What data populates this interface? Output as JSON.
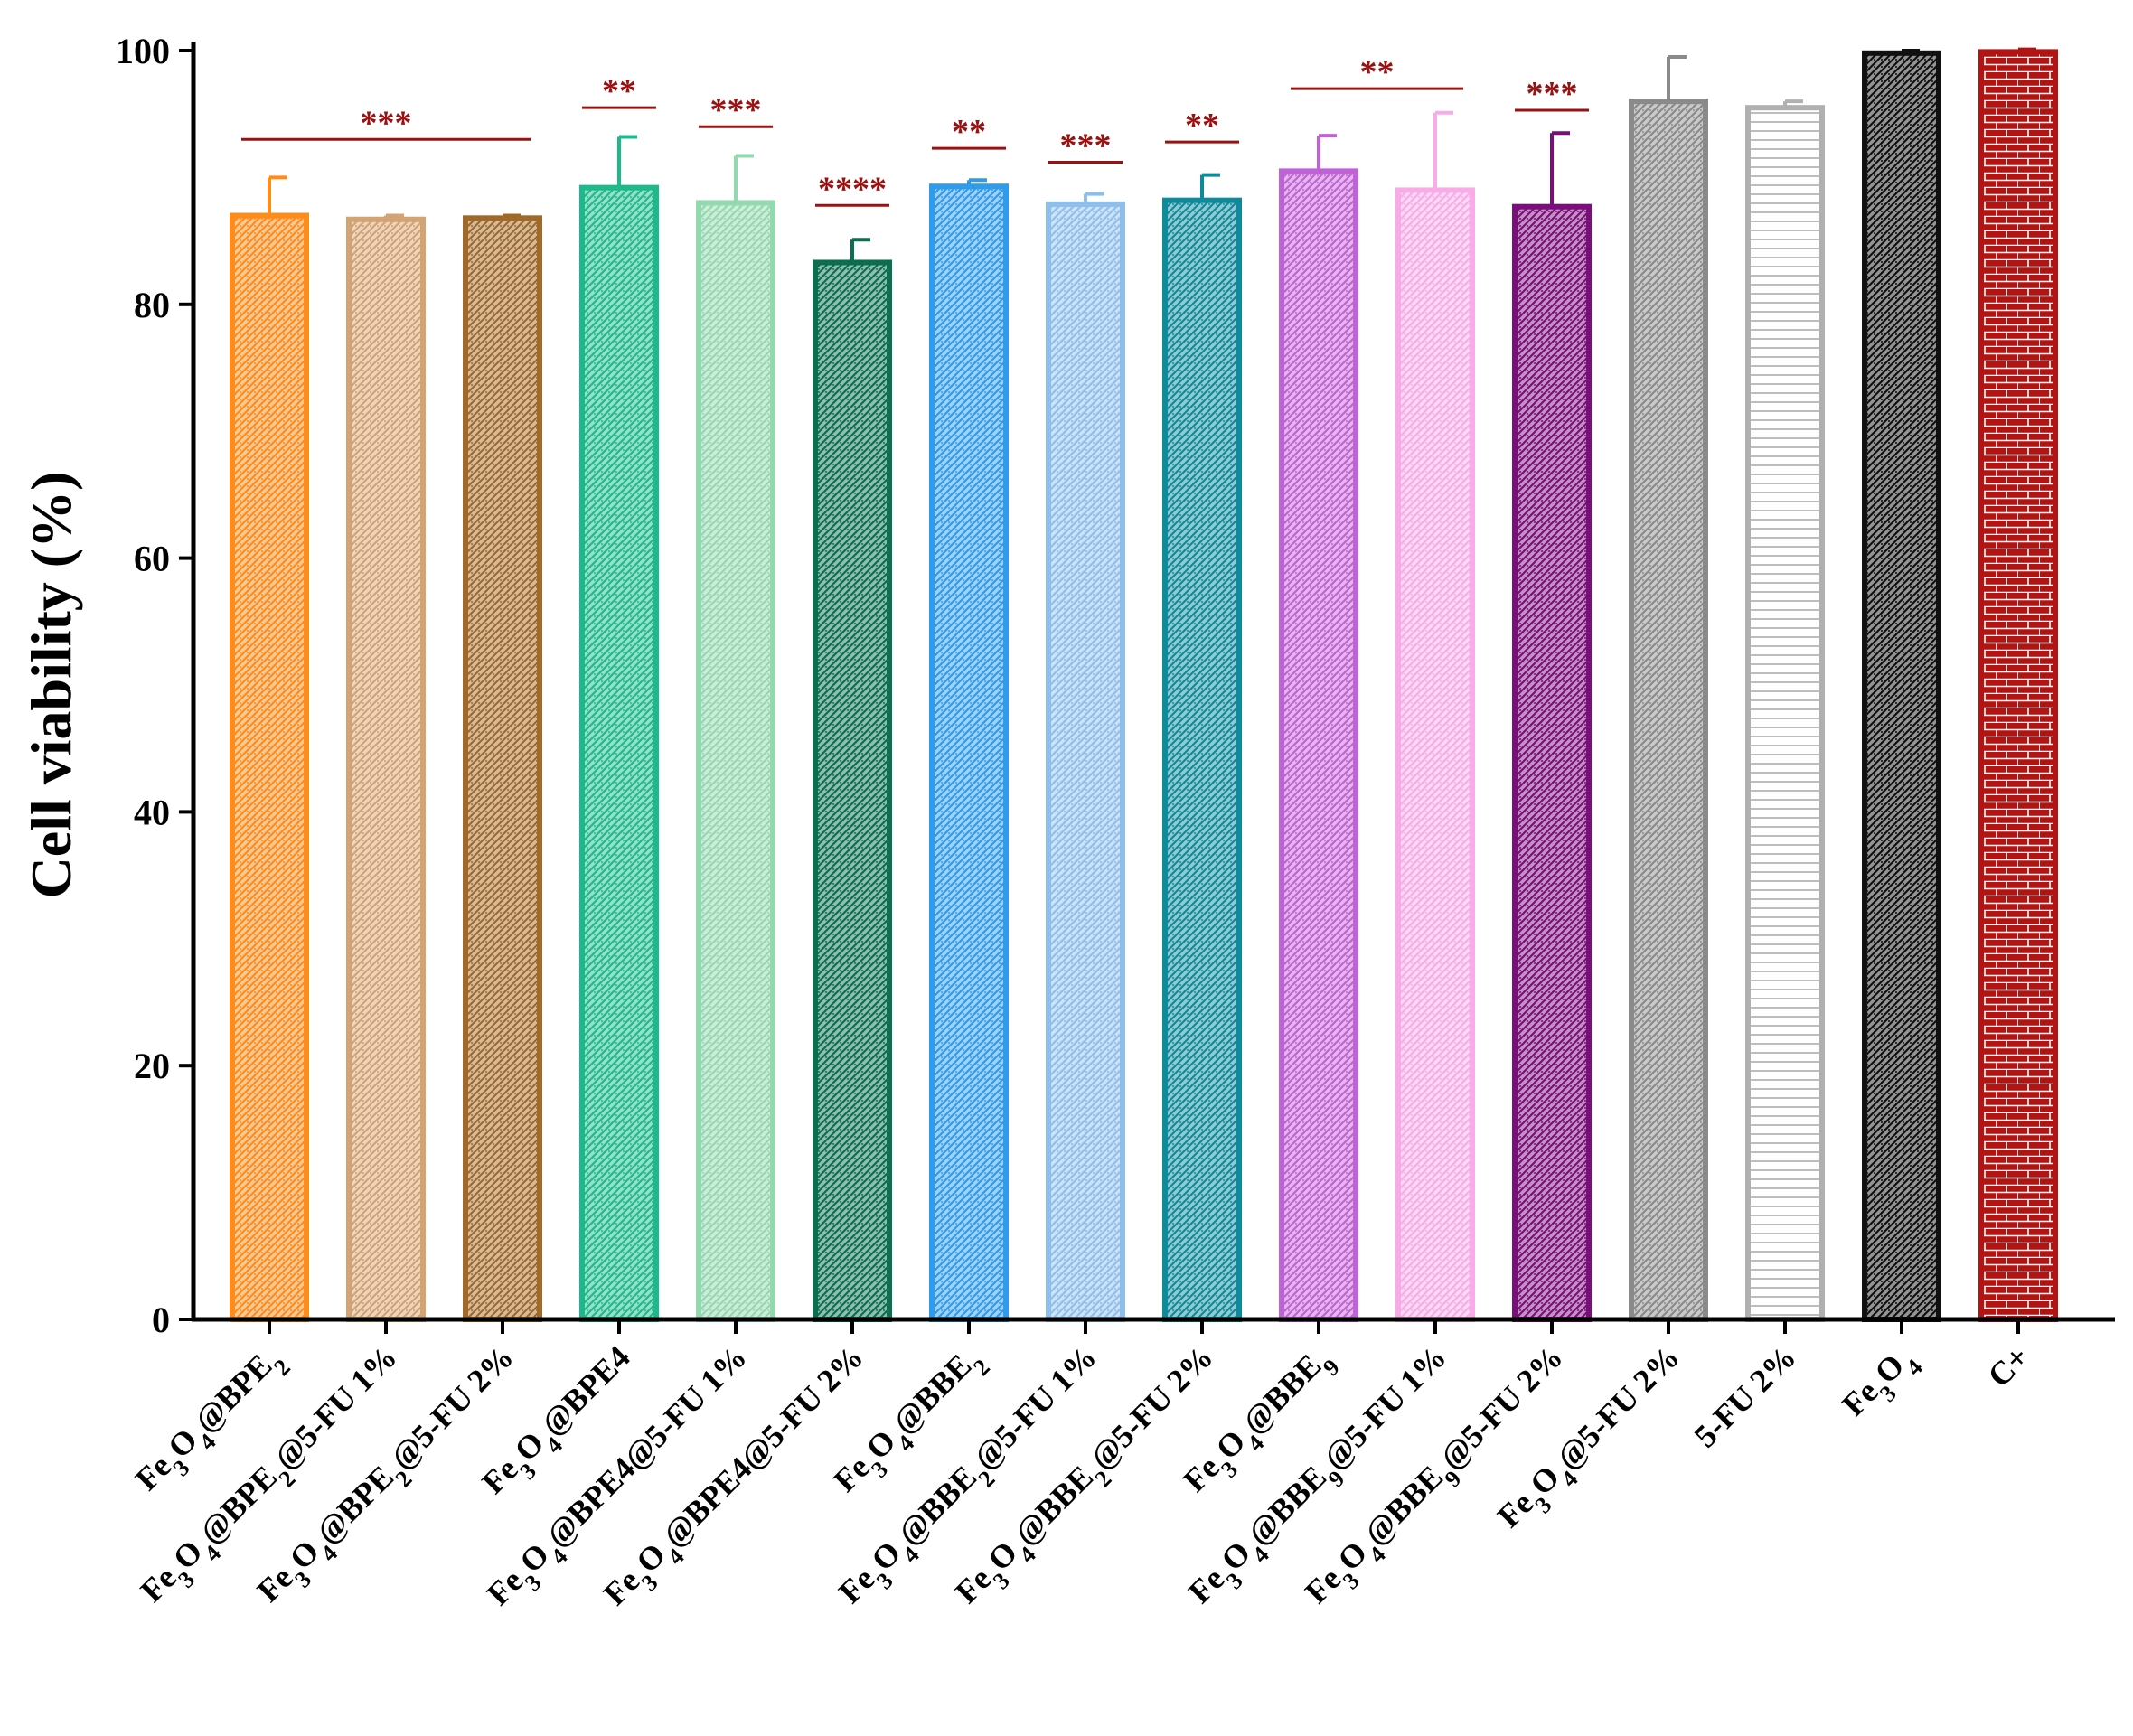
{
  "chart_data": {
    "type": "bar",
    "title": "",
    "xlabel": "",
    "ylabel": "Cell viability (%)",
    "ylim": [
      0,
      100
    ],
    "yticks": [
      0,
      20,
      40,
      60,
      80,
      100
    ],
    "categories": [
      "Fe3O4@BPE2",
      "Fe3O4@BPE2@5-FU 1%",
      "Fe3O4@BPE2@5-FU 2%",
      "Fe3O4@BPE4",
      "Fe3O4@BPE4@5-FU 1%",
      "Fe3O4@BPE4@5-FU 2%",
      "Fe3O4@BBE2",
      "Fe3O4@BBE2@5-FU 1%",
      "Fe3O4@BBE2@5-FU 2%",
      "Fe3O4@BBE9",
      "Fe3O4@BBE9@5-FU 1%",
      "Fe3O4@BBE9@5-FU 2%",
      "Fe3O4@5-FU 2%",
      "5-FU 2%",
      "Fe3O4",
      "C+"
    ],
    "category_labels": [
      [
        {
          "t": "Fe"
        },
        {
          "t": "3",
          "s": "sub"
        },
        {
          "t": "O"
        },
        {
          "t": "4",
          "s": "sub"
        },
        {
          "t": "@BPE"
        },
        {
          "t": "2",
          "s": "sub"
        }
      ],
      [
        {
          "t": "Fe"
        },
        {
          "t": "3",
          "s": "sub"
        },
        {
          "t": "O"
        },
        {
          "t": "4",
          "s": "sub"
        },
        {
          "t": "@BPE"
        },
        {
          "t": "2",
          "s": "sub"
        },
        {
          "t": "@5-FU 1%"
        }
      ],
      [
        {
          "t": "Fe"
        },
        {
          "t": "3",
          "s": "sub"
        },
        {
          "t": "O"
        },
        {
          "t": "4",
          "s": "sub"
        },
        {
          "t": "@BPE"
        },
        {
          "t": "2",
          "s": "sub"
        },
        {
          "t": "@5-FU 2%"
        }
      ],
      [
        {
          "t": "Fe"
        },
        {
          "t": "3",
          "s": "sub"
        },
        {
          "t": "O"
        },
        {
          "t": "4",
          "s": "sub"
        },
        {
          "t": "@BPE4"
        }
      ],
      [
        {
          "t": "Fe"
        },
        {
          "t": "3",
          "s": "sub"
        },
        {
          "t": "O"
        },
        {
          "t": "4",
          "s": "sub"
        },
        {
          "t": "@BPE4@5-FU 1%"
        }
      ],
      [
        {
          "t": "Fe"
        },
        {
          "t": "3",
          "s": "sub"
        },
        {
          "t": "O"
        },
        {
          "t": "4",
          "s": "sub"
        },
        {
          "t": "@BPE4@5-FU 2%"
        }
      ],
      [
        {
          "t": "Fe"
        },
        {
          "t": "3",
          "s": "sub"
        },
        {
          "t": "O"
        },
        {
          "t": "4",
          "s": "sub"
        },
        {
          "t": "@BBE"
        },
        {
          "t": "2",
          "s": "sub"
        }
      ],
      [
        {
          "t": "Fe"
        },
        {
          "t": "3",
          "s": "sub"
        },
        {
          "t": "O"
        },
        {
          "t": "4",
          "s": "sub"
        },
        {
          "t": "@BBE"
        },
        {
          "t": "2",
          "s": "sub"
        },
        {
          "t": "@5-FU 1%"
        }
      ],
      [
        {
          "t": "Fe"
        },
        {
          "t": "3",
          "s": "sub"
        },
        {
          "t": "O"
        },
        {
          "t": "4",
          "s": "sub"
        },
        {
          "t": "@BBE"
        },
        {
          "t": "2",
          "s": "sub"
        },
        {
          "t": "@5-FU 2%"
        }
      ],
      [
        {
          "t": "Fe"
        },
        {
          "t": "3",
          "s": "sub"
        },
        {
          "t": "O"
        },
        {
          "t": "4",
          "s": "sub"
        },
        {
          "t": "@BBE"
        },
        {
          "t": "9",
          "s": "sub"
        }
      ],
      [
        {
          "t": "Fe"
        },
        {
          "t": "3",
          "s": "sub"
        },
        {
          "t": "O"
        },
        {
          "t": "4",
          "s": "sub"
        },
        {
          "t": "@BBE"
        },
        {
          "t": "9",
          "s": "sub"
        },
        {
          "t": "@5-FU 1%"
        }
      ],
      [
        {
          "t": "Fe"
        },
        {
          "t": "3",
          "s": "sub"
        },
        {
          "t": "O"
        },
        {
          "t": "4",
          "s": "sub"
        },
        {
          "t": "@BBE"
        },
        {
          "t": "9",
          "s": "sub"
        },
        {
          "t": "@5-FU 2%"
        }
      ],
      [
        {
          "t": "Fe"
        },
        {
          "t": "3",
          "s": "sub"
        },
        {
          "t": "O"
        },
        {
          "t": "4",
          "s": "sub"
        },
        {
          "t": "@5-FU 2%"
        }
      ],
      [
        {
          "t": "5-FU 2%"
        }
      ],
      [
        {
          "t": "Fe"
        },
        {
          "t": "3",
          "s": "sub"
        },
        {
          "t": "O"
        },
        {
          "t": "4",
          "s": "sub"
        }
      ],
      [
        {
          "t": "C+"
        }
      ]
    ],
    "values": [
      87,
      86.7,
      86.8,
      89.2,
      88,
      83.3,
      89.3,
      87.9,
      88.2,
      90.5,
      89,
      87.7,
      96,
      95.5,
      99.8,
      99.9
    ],
    "errors": [
      3,
      0.3,
      0.2,
      4,
      3.7,
      1.8,
      0.5,
      0.8,
      2,
      2.8,
      6.1,
      5.8,
      3.5,
      0.5,
      0.2,
      0.2
    ],
    "colors": [
      "#FF8C1A",
      "#D4A373",
      "#A0692A",
      "#1DB98A",
      "#93D8AE",
      "#0B6E4F",
      "#2F9BEB",
      "#8DBFEA",
      "#0E8A9A",
      "#C062D5",
      "#F8ABE6",
      "#7A0E7A",
      "#8A8A8A",
      "#B0B0B0",
      "#111111",
      "#B21414"
    ],
    "significance": [
      {
        "label": "***",
        "from": 0,
        "to": 2,
        "y": 93
      },
      {
        "label": "**",
        "from": 3,
        "to": 3,
        "y": 95.5
      },
      {
        "label": "***",
        "from": 4,
        "to": 4,
        "y": 94
      },
      {
        "label": "****",
        "from": 5,
        "to": 5,
        "y": 87.8
      },
      {
        "label": "**",
        "from": 6,
        "to": 6,
        "y": 92.3
      },
      {
        "label": "***",
        "from": 7,
        "to": 7,
        "y": 91.2
      },
      {
        "label": "**",
        "from": 8,
        "to": 8,
        "y": 92.8
      },
      {
        "label": "**",
        "from": 9,
        "to": 10,
        "y": 97
      },
      {
        "label": "***",
        "from": 11,
        "to": 11,
        "y": 95.3
      }
    ],
    "significance_color": "#9B1010",
    "grid": false,
    "legend": "none"
  }
}
